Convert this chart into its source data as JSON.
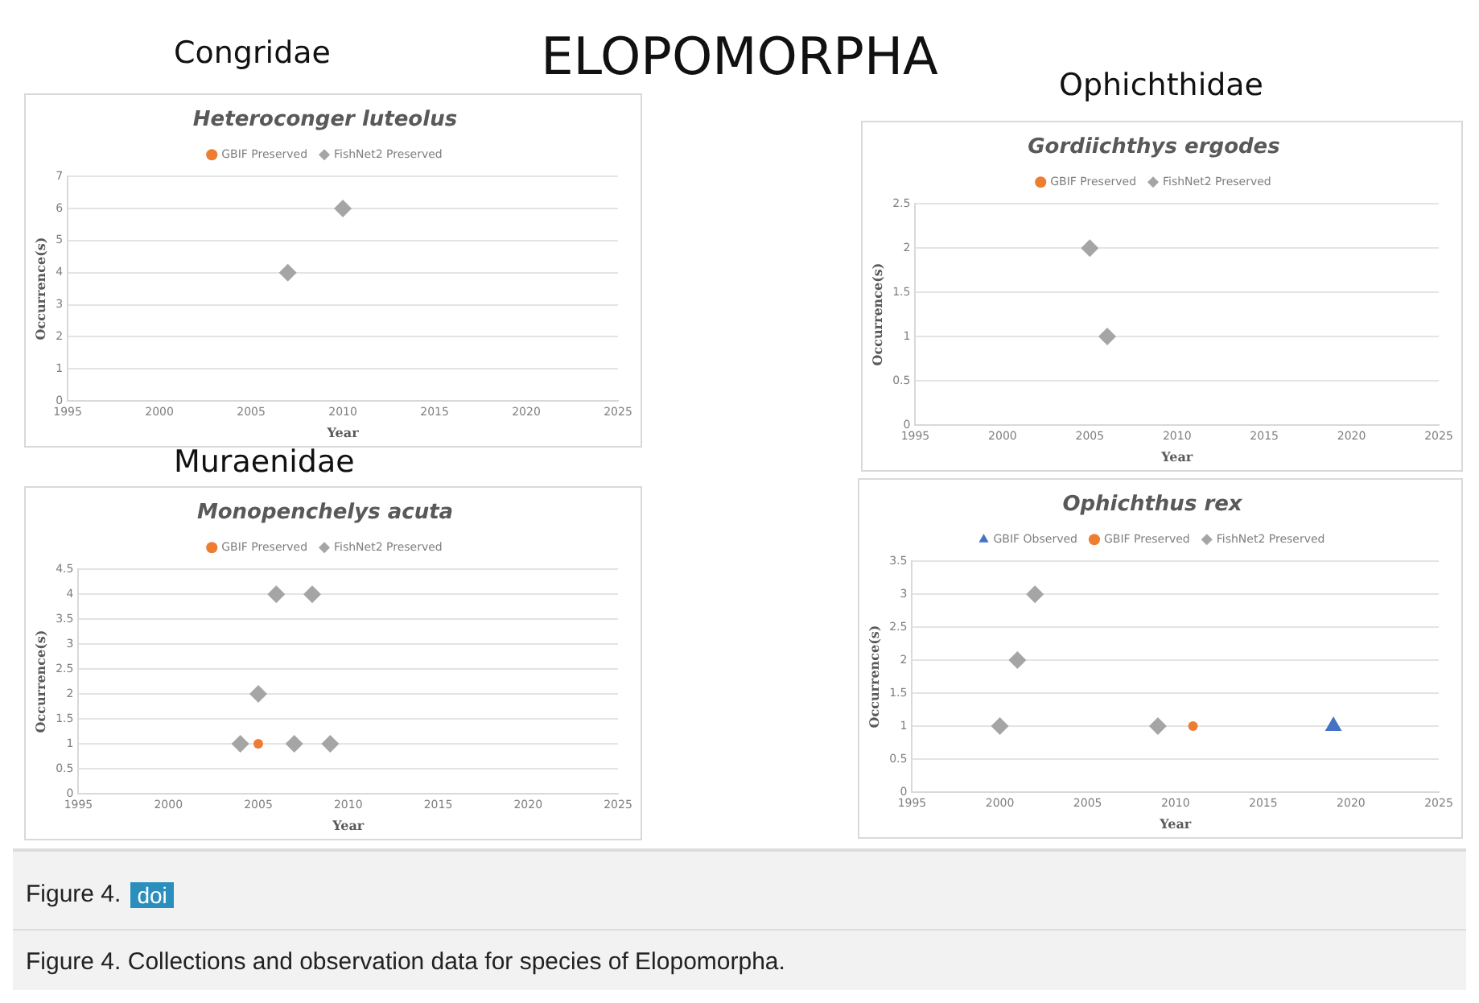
{
  "chart_data": [
    {
      "type": "other",
      "title": "ELOPOMORPHA"
    },
    {
      "type": "scatter",
      "subtitle": "Congridae",
      "title": "Heteroconger luteolus",
      "xlabel": "Year",
      "ylabel": "Occurrence(s)",
      "xlim": [
        1995,
        2025
      ],
      "xticks": [
        1995,
        2000,
        2005,
        2010,
        2015,
        2020,
        2025
      ],
      "ylim": [
        0,
        7
      ],
      "yticks": [
        0,
        1,
        2,
        3,
        4,
        5,
        6,
        7
      ],
      "grid": "y",
      "legend": "top",
      "series": [
        {
          "name": "GBIF Preserved",
          "color": "#ed7d31",
          "marker": "circle"
        },
        {
          "name": "FishNet2 Preserved",
          "color": "#a5a5a5",
          "marker": "diamond",
          "x": [
            2007,
            2010
          ],
          "values": [
            4,
            6
          ]
        }
      ]
    },
    {
      "type": "scatter",
      "subtitle": "Ophichthidae",
      "title": "Gordiichthys ergodes",
      "xlabel": "Year",
      "ylabel": "Occurrence(s)",
      "xlim": [
        1995,
        2025
      ],
      "xticks": [
        1995,
        2000,
        2005,
        2010,
        2015,
        2020,
        2025
      ],
      "ylim": [
        0,
        2.5
      ],
      "yticks": [
        0,
        0.5,
        1,
        1.5,
        2,
        2.5
      ],
      "grid": "y",
      "legend": "top",
      "series": [
        {
          "name": "GBIF Preserved",
          "color": "#ed7d31",
          "marker": "circle"
        },
        {
          "name": "FishNet2 Preserved",
          "color": "#a5a5a5",
          "marker": "diamond",
          "x": [
            2005,
            2006
          ],
          "values": [
            2,
            1
          ]
        }
      ]
    },
    {
      "type": "scatter",
      "subtitle": "Muraenidae",
      "title": "Monopenchelys acuta",
      "xlabel": "Year",
      "ylabel": "Occurrence(s)",
      "xlim": [
        1995,
        2025
      ],
      "xticks": [
        1995,
        2000,
        2005,
        2010,
        2015,
        2020,
        2025
      ],
      "ylim": [
        0,
        4.5
      ],
      "yticks": [
        0,
        0.5,
        1,
        1.5,
        2,
        2.5,
        3,
        3.5,
        4,
        4.5
      ],
      "grid": "y",
      "legend": "top",
      "series": [
        {
          "name": "GBIF Preserved",
          "color": "#ed7d31",
          "marker": "circle",
          "x": [
            2005
          ],
          "values": [
            1
          ]
        },
        {
          "name": "FishNet2 Preserved",
          "color": "#a5a5a5",
          "marker": "diamond",
          "x": [
            2004,
            2005,
            2006,
            2007,
            2008,
            2009
          ],
          "values": [
            1,
            2,
            4,
            1,
            4,
            1
          ]
        }
      ]
    },
    {
      "type": "scatter",
      "title": "Ophichthus rex",
      "xlabel": "Year",
      "ylabel": "Occurrence(s)",
      "xlim": [
        1995,
        2025
      ],
      "xticks": [
        1995,
        2000,
        2005,
        2010,
        2015,
        2020,
        2025
      ],
      "ylim": [
        0,
        3.5
      ],
      "yticks": [
        0,
        0.5,
        1,
        1.5,
        2,
        2.5,
        3,
        3.5
      ],
      "grid": "y",
      "legend": "top",
      "series": [
        {
          "name": "GBIF Observed",
          "color": "#4472c4",
          "marker": "triangle",
          "x": [
            2019
          ],
          "values": [
            1
          ]
        },
        {
          "name": "GBIF Preserved",
          "color": "#ed7d31",
          "marker": "circle",
          "x": [
            2011
          ],
          "values": [
            1
          ]
        },
        {
          "name": "FishNet2 Preserved",
          "color": "#a5a5a5",
          "marker": "diamond",
          "x": [
            2000,
            2001,
            2002,
            2009
          ],
          "values": [
            1,
            2,
            3,
            1
          ]
        }
      ]
    },
    {
      "type": "other",
      "title": "Figure 4.",
      "annotations": [
        "doi",
        "Figure 4. Collections and observation data for species of Elopomorpha."
      ]
    }
  ]
}
